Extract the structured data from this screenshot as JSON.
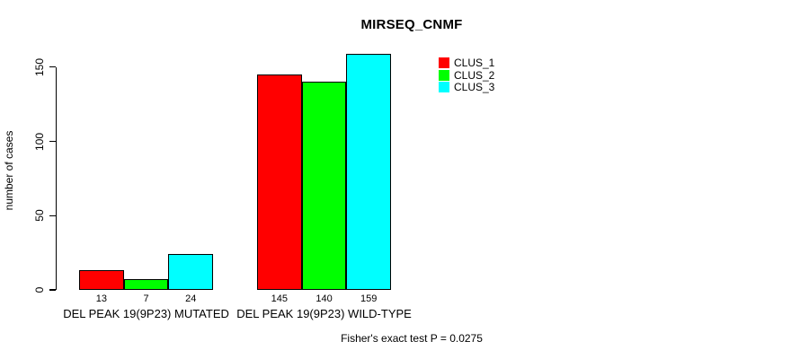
{
  "chart_data": {
    "type": "bar",
    "title": "MIRSEQ_CNMF",
    "xlabel": "",
    "ylabel": "number of cases",
    "ylim": [
      0,
      150
    ],
    "yticks": [
      0,
      50,
      100,
      150
    ],
    "grid": false,
    "legend_position": "top-right",
    "categories": [
      "DEL PEAK 19(9P23) MUTATED",
      "DEL PEAK 19(9P23) WILD-TYPE"
    ],
    "series": [
      {
        "name": "CLUS_1",
        "color": "#ff0000",
        "values": [
          13,
          145
        ]
      },
      {
        "name": "CLUS_2",
        "color": "#00ff00",
        "values": [
          7,
          140
        ]
      },
      {
        "name": "CLUS_3",
        "color": "#00ffff",
        "values": [
          24,
          159
        ]
      }
    ],
    "bar_value_labels": [
      [
        13,
        7,
        24
      ],
      [
        145,
        140,
        159
      ]
    ],
    "annotation": "Fisher's exact test P = 0.0275"
  }
}
